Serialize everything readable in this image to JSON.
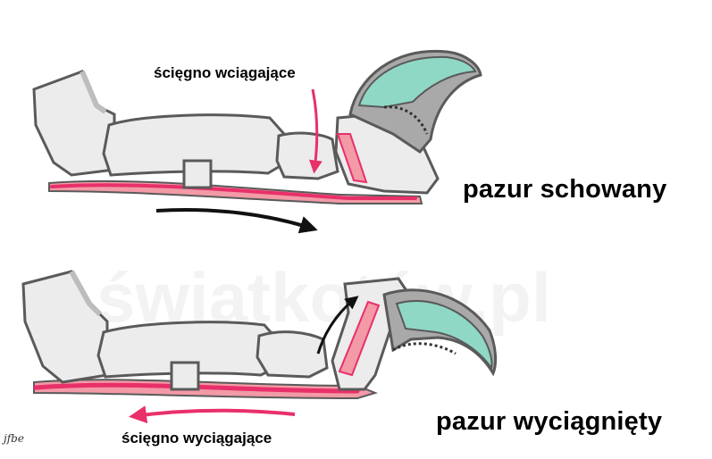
{
  "top_panel": {
    "tendon_label": "ścięgno wciągające",
    "state_label": "pazur schowany"
  },
  "bottom_panel": {
    "tendon_label": "ścięgno wyciągające",
    "state_label": "pazur wyciągnięty"
  },
  "watermark": "światkotów.pl",
  "signature": "jfbe",
  "icons": {
    "bone": "bone-shape",
    "claw": "claw-shape",
    "tendon": "tendon-band",
    "arrow": "arrow"
  },
  "colors": {
    "bone_fill": "#ececec",
    "bone_outline": "#5a5a5a",
    "bone_shade": "#bdbdbd",
    "claw_fill": "#8fd8c6",
    "claw_sheath": "#a9a9a9",
    "tendon": "#e8306a",
    "tendon_light": "#f29aa6",
    "arrow_black": "#111111",
    "arrow_pink": "#e8306a",
    "watermark": "#000000"
  }
}
